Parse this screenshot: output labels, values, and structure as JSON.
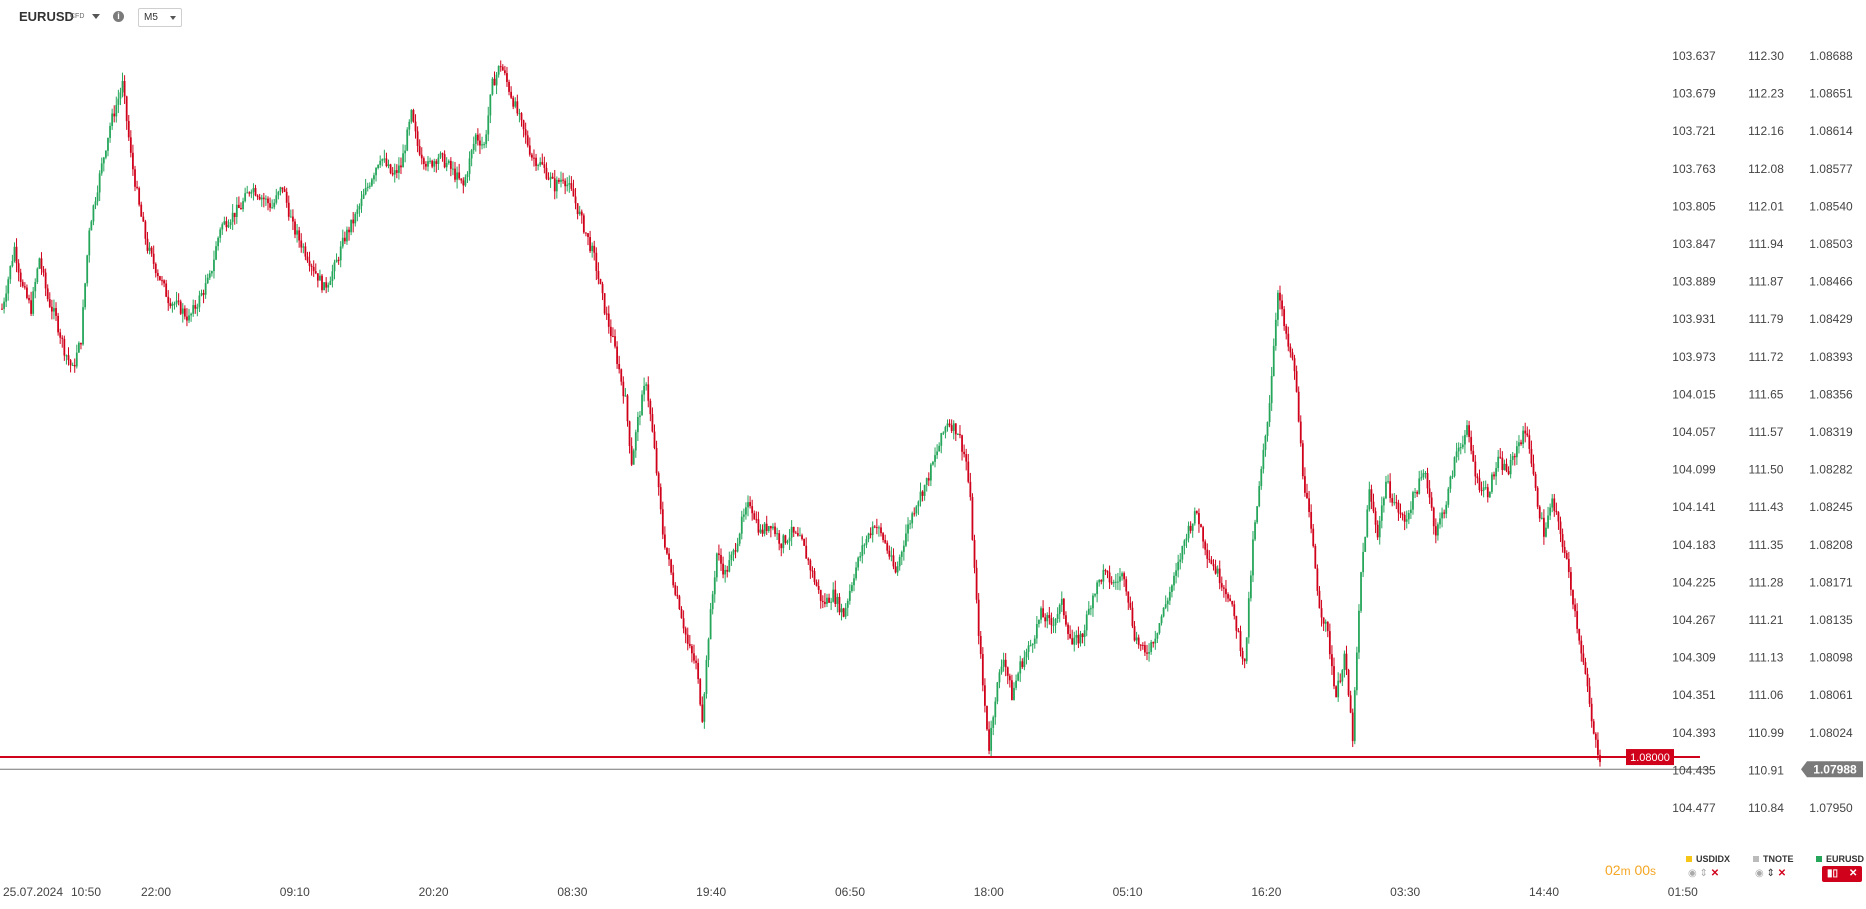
{
  "header": {
    "symbol": "EURUSD",
    "symbol_type": "CFD",
    "info_icon": "i",
    "timeframe": "M5"
  },
  "countdown": {
    "minutes": "02",
    "min_unit": "m",
    "seconds": "00",
    "sec_unit": "s"
  },
  "legend": {
    "items": [
      {
        "name": "USDIDX",
        "color": "#f5c518"
      },
      {
        "name": "TNOTE",
        "color": "#bbbbbb"
      },
      {
        "name": "EURUSD",
        "color": "#26a65b"
      }
    ]
  },
  "chart_data": {
    "type": "candlestick",
    "symbol": "EURUSD",
    "timeframe": "M5",
    "x_tick_labels": [
      "25.07.2024",
      "10:50",
      "22:00",
      "09:10",
      "20:20",
      "08:30",
      "19:40",
      "06:50",
      "18:00",
      "05:10",
      "16:20",
      "03:30",
      "14:40",
      "01:50"
    ],
    "price_axes": [
      {
        "name": "USDIDX",
        "ticks": [
          "103.637",
          "103.679",
          "103.721",
          "103.763",
          "103.805",
          "103.847",
          "103.889",
          "103.931",
          "103.973",
          "104.015",
          "104.057",
          "104.099",
          "104.141",
          "104.183",
          "104.225",
          "104.267",
          "104.309",
          "104.351",
          "104.393",
          "104.435",
          "104.477"
        ],
        "inverted": true
      },
      {
        "name": "TNOTE",
        "ticks": [
          "112.30",
          "112.23",
          "112.16",
          "112.08",
          "112.01",
          "111.94",
          "111.87",
          "111.79",
          "111.72",
          "111.65",
          "111.57",
          "111.50",
          "111.43",
          "111.35",
          "111.28",
          "111.21",
          "111.13",
          "111.06",
          "110.99",
          "110.91",
          "110.84"
        ],
        "inverted": true
      },
      {
        "name": "EURUSD",
        "ticks": [
          "1.08688",
          "1.08651",
          "1.08614",
          "1.08577",
          "1.08540",
          "1.08503",
          "1.08466",
          "1.08429",
          "1.08393",
          "1.08356",
          "1.08319",
          "1.08282",
          "1.08245",
          "1.08208",
          "1.08171",
          "1.08135",
          "1.08098",
          "1.08061",
          "1.08024",
          "1.07988",
          "1.07950"
        ]
      }
    ],
    "ylim": [
      1.0795,
      1.08688
    ],
    "horizontal_line": {
      "value": 1.08,
      "label": "1.08000",
      "color": "#d0021b"
    },
    "current_price": {
      "value": 1.07988,
      "label": "1.07988"
    },
    "colors": {
      "up": "#26a65b",
      "down": "#d0021b"
    },
    "close_path": [
      [
        0,
        1.0844
      ],
      [
        6,
        1.085
      ],
      [
        10,
        1.0846
      ],
      [
        14,
        1.0844
      ],
      [
        18,
        1.0849
      ],
      [
        22,
        1.0845
      ],
      [
        26,
        1.0843
      ],
      [
        30,
        1.084
      ],
      [
        34,
        1.0838
      ],
      [
        38,
        1.0841
      ],
      [
        42,
        1.0852
      ],
      [
        46,
        1.0856
      ],
      [
        52,
        1.0862
      ],
      [
        58,
        1.0866
      ],
      [
        62,
        1.0859
      ],
      [
        66,
        1.0854
      ],
      [
        70,
        1.085
      ],
      [
        74,
        1.0848
      ],
      [
        80,
        1.0845
      ],
      [
        86,
        1.0844
      ],
      [
        90,
        1.0843
      ],
      [
        95,
        1.0845
      ],
      [
        100,
        1.0847
      ],
      [
        105,
        1.0852
      ],
      [
        110,
        1.0853
      ],
      [
        115,
        1.0854
      ],
      [
        120,
        1.0856
      ],
      [
        125,
        1.0855
      ],
      [
        130,
        1.0854
      ],
      [
        135,
        1.0856
      ],
      [
        140,
        1.0852
      ],
      [
        145,
        1.085
      ],
      [
        150,
        1.0848
      ],
      [
        155,
        1.0846
      ],
      [
        160,
        1.0848
      ],
      [
        165,
        1.0851
      ],
      [
        170,
        1.0853
      ],
      [
        176,
        1.0856
      ],
      [
        182,
        1.0859
      ],
      [
        188,
        1.0857
      ],
      [
        192,
        1.0858
      ],
      [
        197,
        1.0863
      ],
      [
        200,
        1.086
      ],
      [
        205,
        1.0858
      ],
      [
        210,
        1.0859
      ],
      [
        215,
        1.0858
      ],
      [
        222,
        1.0856
      ],
      [
        228,
        1.0861
      ],
      [
        232,
        1.086
      ],
      [
        236,
        1.0866
      ],
      [
        240,
        1.0868
      ],
      [
        245,
        1.0865
      ],
      [
        250,
        1.0862
      ],
      [
        255,
        1.0859
      ],
      [
        260,
        1.0858
      ],
      [
        266,
        1.0856
      ],
      [
        270,
        1.0857
      ],
      [
        275,
        1.0855
      ],
      [
        280,
        1.0852
      ],
      [
        285,
        1.0849
      ],
      [
        290,
        1.0844
      ],
      [
        295,
        1.084
      ],
      [
        300,
        1.0835
      ],
      [
        303,
        1.0829
      ],
      [
        306,
        1.0833
      ],
      [
        310,
        1.0837
      ],
      [
        314,
        1.083
      ],
      [
        318,
        1.0822
      ],
      [
        322,
        1.0818
      ],
      [
        326,
        1.0815
      ],
      [
        330,
        1.0811
      ],
      [
        334,
        1.0809
      ],
      [
        337,
        1.0804
      ],
      [
        340,
        1.0812
      ],
      [
        344,
        1.082
      ],
      [
        348,
        1.0818
      ],
      [
        352,
        1.082
      ],
      [
        356,
        1.0823
      ],
      [
        360,
        1.0825
      ],
      [
        365,
        1.0822
      ],
      [
        370,
        1.0823
      ],
      [
        375,
        1.0821
      ],
      [
        380,
        1.0822
      ],
      [
        385,
        1.0821
      ],
      [
        390,
        1.0818
      ],
      [
        395,
        1.0815
      ],
      [
        400,
        1.0816
      ],
      [
        405,
        1.0814
      ],
      [
        410,
        1.0818
      ],
      [
        415,
        1.0821
      ],
      [
        420,
        1.0823
      ],
      [
        425,
        1.0821
      ],
      [
        430,
        1.0818
      ],
      [
        435,
        1.0822
      ],
      [
        440,
        1.0825
      ],
      [
        445,
        1.0827
      ],
      [
        450,
        1.083
      ],
      [
        455,
        1.0833
      ],
      [
        460,
        1.0832
      ],
      [
        464,
        1.0829
      ],
      [
        466,
        1.0825
      ],
      [
        469,
        1.0815
      ],
      [
        472,
        1.0807
      ],
      [
        475,
        1.0801
      ],
      [
        478,
        1.0806
      ],
      [
        482,
        1.081
      ],
      [
        486,
        1.0806
      ],
      [
        490,
        1.0809
      ],
      [
        495,
        1.0811
      ],
      [
        500,
        1.0814
      ],
      [
        505,
        1.0813
      ],
      [
        510,
        1.0815
      ],
      [
        515,
        1.0811
      ],
      [
        520,
        1.0812
      ],
      [
        525,
        1.0816
      ],
      [
        530,
        1.0818
      ],
      [
        535,
        1.0817
      ],
      [
        540,
        1.0818
      ],
      [
        545,
        1.0812
      ],
      [
        550,
        1.081
      ],
      [
        555,
        1.0812
      ],
      [
        560,
        1.0815
      ],
      [
        565,
        1.0818
      ],
      [
        570,
        1.0822
      ],
      [
        575,
        1.0824
      ],
      [
        580,
        1.082
      ],
      [
        585,
        1.0818
      ],
      [
        590,
        1.0816
      ],
      [
        595,
        1.0812
      ],
      [
        598,
        1.0809
      ],
      [
        602,
        1.0821
      ],
      [
        606,
        1.0828
      ],
      [
        610,
        1.0835
      ],
      [
        614,
        1.0846
      ],
      [
        618,
        1.0841
      ],
      [
        622,
        1.0838
      ],
      [
        626,
        1.0828
      ],
      [
        630,
        1.0822
      ],
      [
        634,
        1.0815
      ],
      [
        638,
        1.0812
      ],
      [
        642,
        1.0806
      ],
      [
        646,
        1.081
      ],
      [
        650,
        1.0802
      ],
      [
        654,
        1.0818
      ],
      [
        658,
        1.0826
      ],
      [
        662,
        1.0822
      ],
      [
        666,
        1.0827
      ],
      [
        670,
        1.0825
      ],
      [
        675,
        1.0823
      ],
      [
        680,
        1.0826
      ],
      [
        685,
        1.0828
      ],
      [
        690,
        1.0822
      ],
      [
        695,
        1.0825
      ],
      [
        700,
        1.083
      ],
      [
        705,
        1.0832
      ],
      [
        710,
        1.0827
      ],
      [
        715,
        1.0826
      ],
      [
        720,
        1.0829
      ],
      [
        725,
        1.0828
      ],
      [
        730,
        1.0831
      ],
      [
        734,
        1.0832
      ],
      [
        738,
        1.0826
      ],
      [
        742,
        1.0822
      ],
      [
        746,
        1.0825
      ],
      [
        750,
        1.0822
      ],
      [
        754,
        1.0818
      ],
      [
        758,
        1.0813
      ],
      [
        762,
        1.0808
      ],
      [
        766,
        1.0802
      ],
      [
        769,
        1.08
      ]
    ]
  }
}
